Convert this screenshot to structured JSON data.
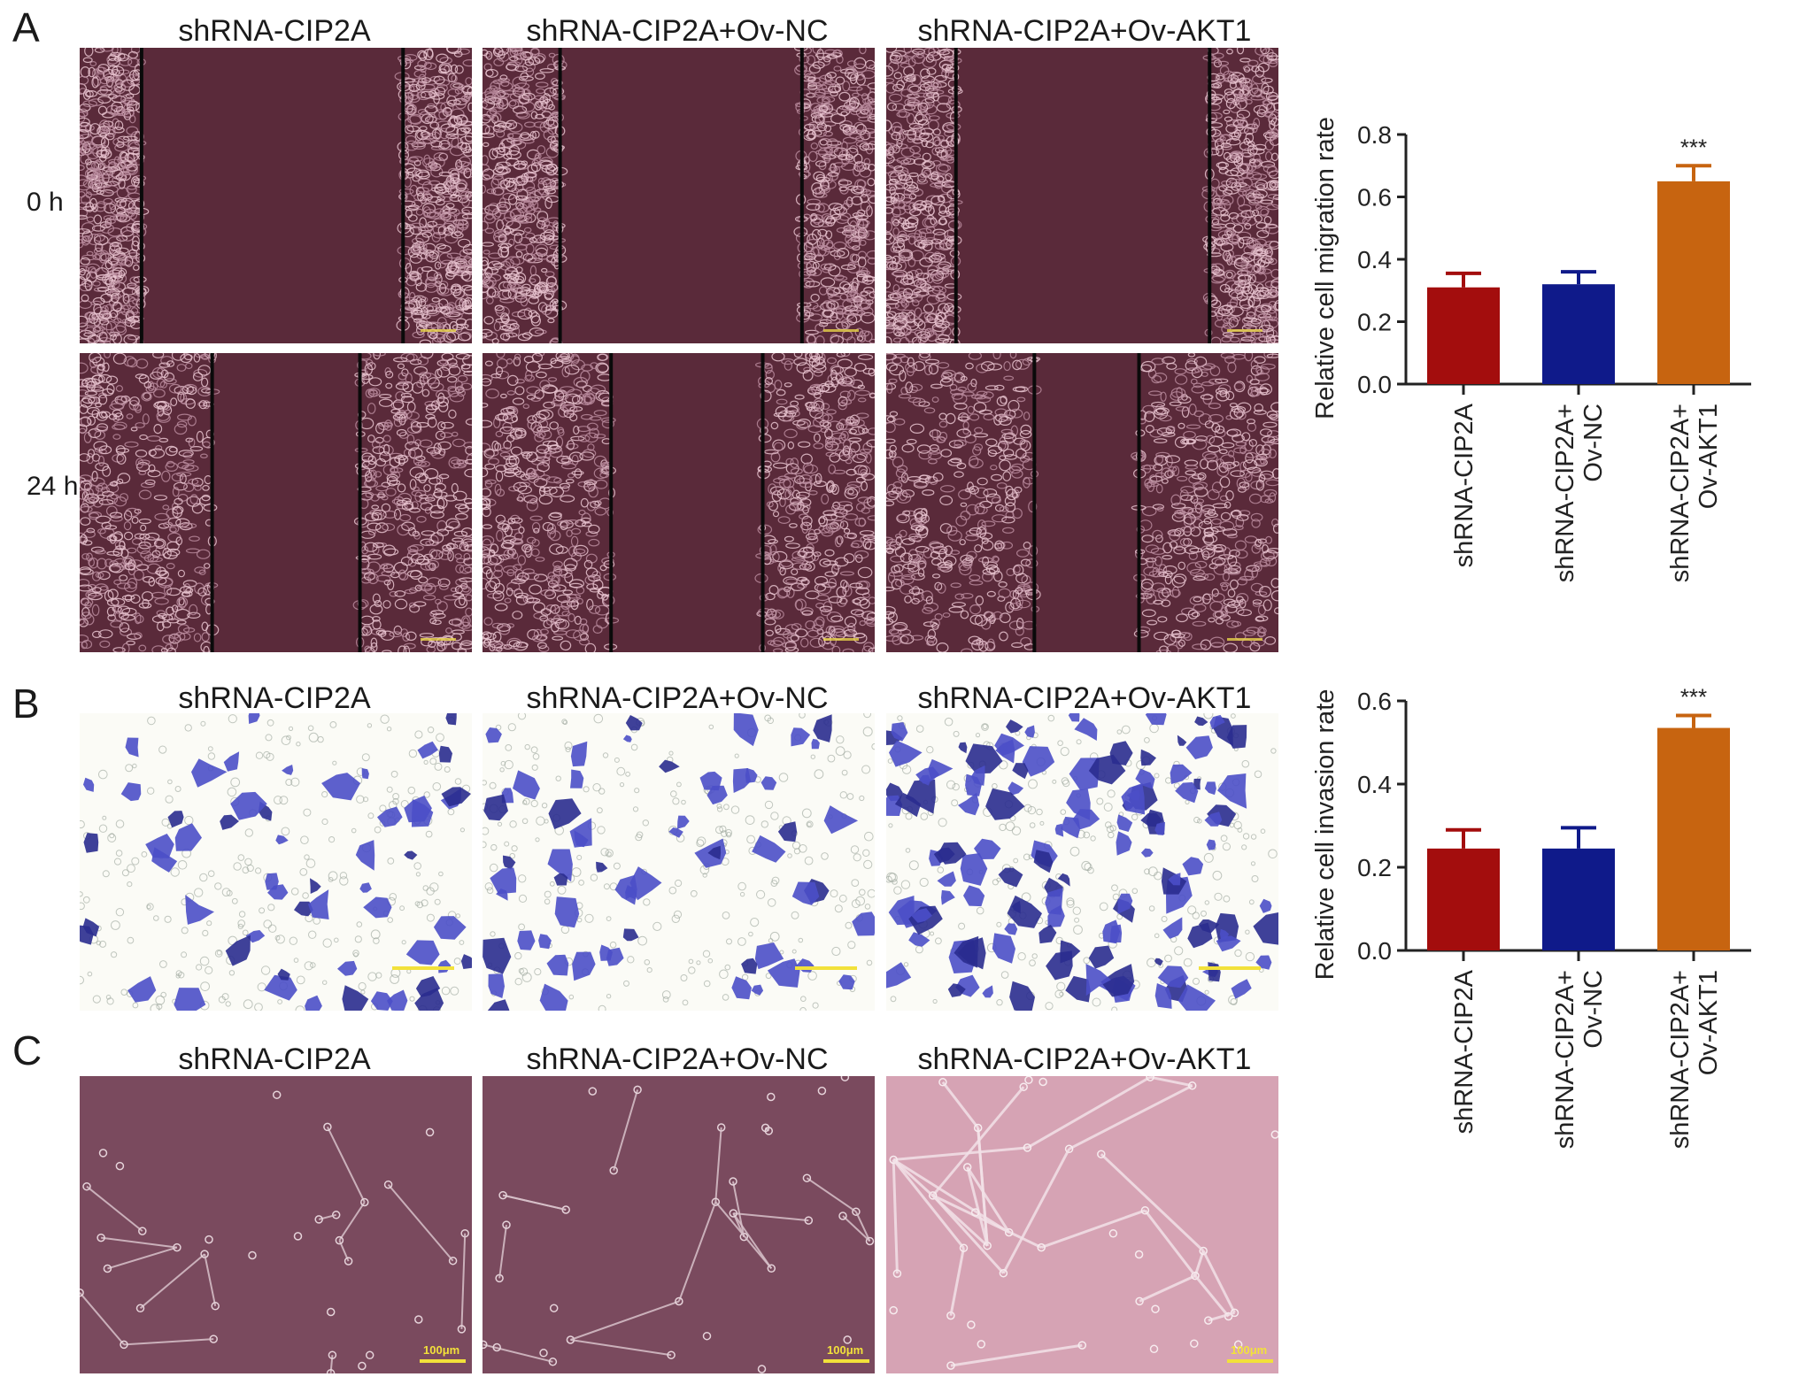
{
  "panels": {
    "A": {
      "letter": "A",
      "columns": [
        "shRNA-CIP2A",
        "shRNA-CIP2A+Ov-NC",
        "shRNA-CIP2A+Ov-AKT1"
      ],
      "rows": [
        "0 h",
        "24 h"
      ]
    },
    "B": {
      "letter": "B",
      "columns": [
        "shRNA-CIP2A",
        "shRNA-CIP2A+Ov-NC",
        "shRNA-CIP2A+Ov-AKT1"
      ]
    },
    "C": {
      "letter": "C",
      "columns": [
        "shRNA-CIP2A",
        "shRNA-CIP2A+Ov-NC",
        "shRNA-CIP2A+Ov-AKT1"
      ],
      "scale_labels": [
        "100μm",
        "100μm",
        "100μm"
      ]
    }
  },
  "chart_data": [
    {
      "type": "bar",
      "categories": [
        [
          "shRNA-CIP2A"
        ],
        [
          "shRNA-CIP2A+",
          "Ov-NC"
        ],
        [
          "shRNA-CIP2A+",
          "Ov-AKT1"
        ]
      ],
      "values": [
        0.31,
        0.32,
        0.65
      ],
      "errors": [
        0.045,
        0.04,
        0.05
      ],
      "colors": [
        "#a30d0d",
        "#0f1a8a",
        "#c76410"
      ],
      "annotations": [
        "",
        "",
        "***"
      ],
      "ylabel": "Relative cell migration rate",
      "ylim": [
        0,
        0.8
      ],
      "yticks": [
        "0.0",
        "0.2",
        "0.4",
        "0.6",
        "0.8"
      ],
      "ytick_values": [
        0,
        0.2,
        0.4,
        0.6,
        0.8
      ]
    },
    {
      "type": "bar",
      "categories": [
        [
          "shRNA-CIP2A"
        ],
        [
          "shRNA-CIP2A+",
          "Ov-NC"
        ],
        [
          "shRNA-CIP2A+",
          "Ov-AKT1"
        ]
      ],
      "values": [
        0.245,
        0.245,
        0.535
      ],
      "errors": [
        0.045,
        0.05,
        0.03
      ],
      "colors": [
        "#a30d0d",
        "#0f1a8a",
        "#c76410"
      ],
      "annotations": [
        "",
        "",
        "***"
      ],
      "ylabel": "Relative cell invasion rate",
      "ylim": [
        0,
        0.6
      ],
      "yticks": [
        "0.0",
        "0.2",
        "0.4",
        "0.6"
      ],
      "ytick_values": [
        0,
        0.2,
        0.4,
        0.6
      ]
    }
  ]
}
